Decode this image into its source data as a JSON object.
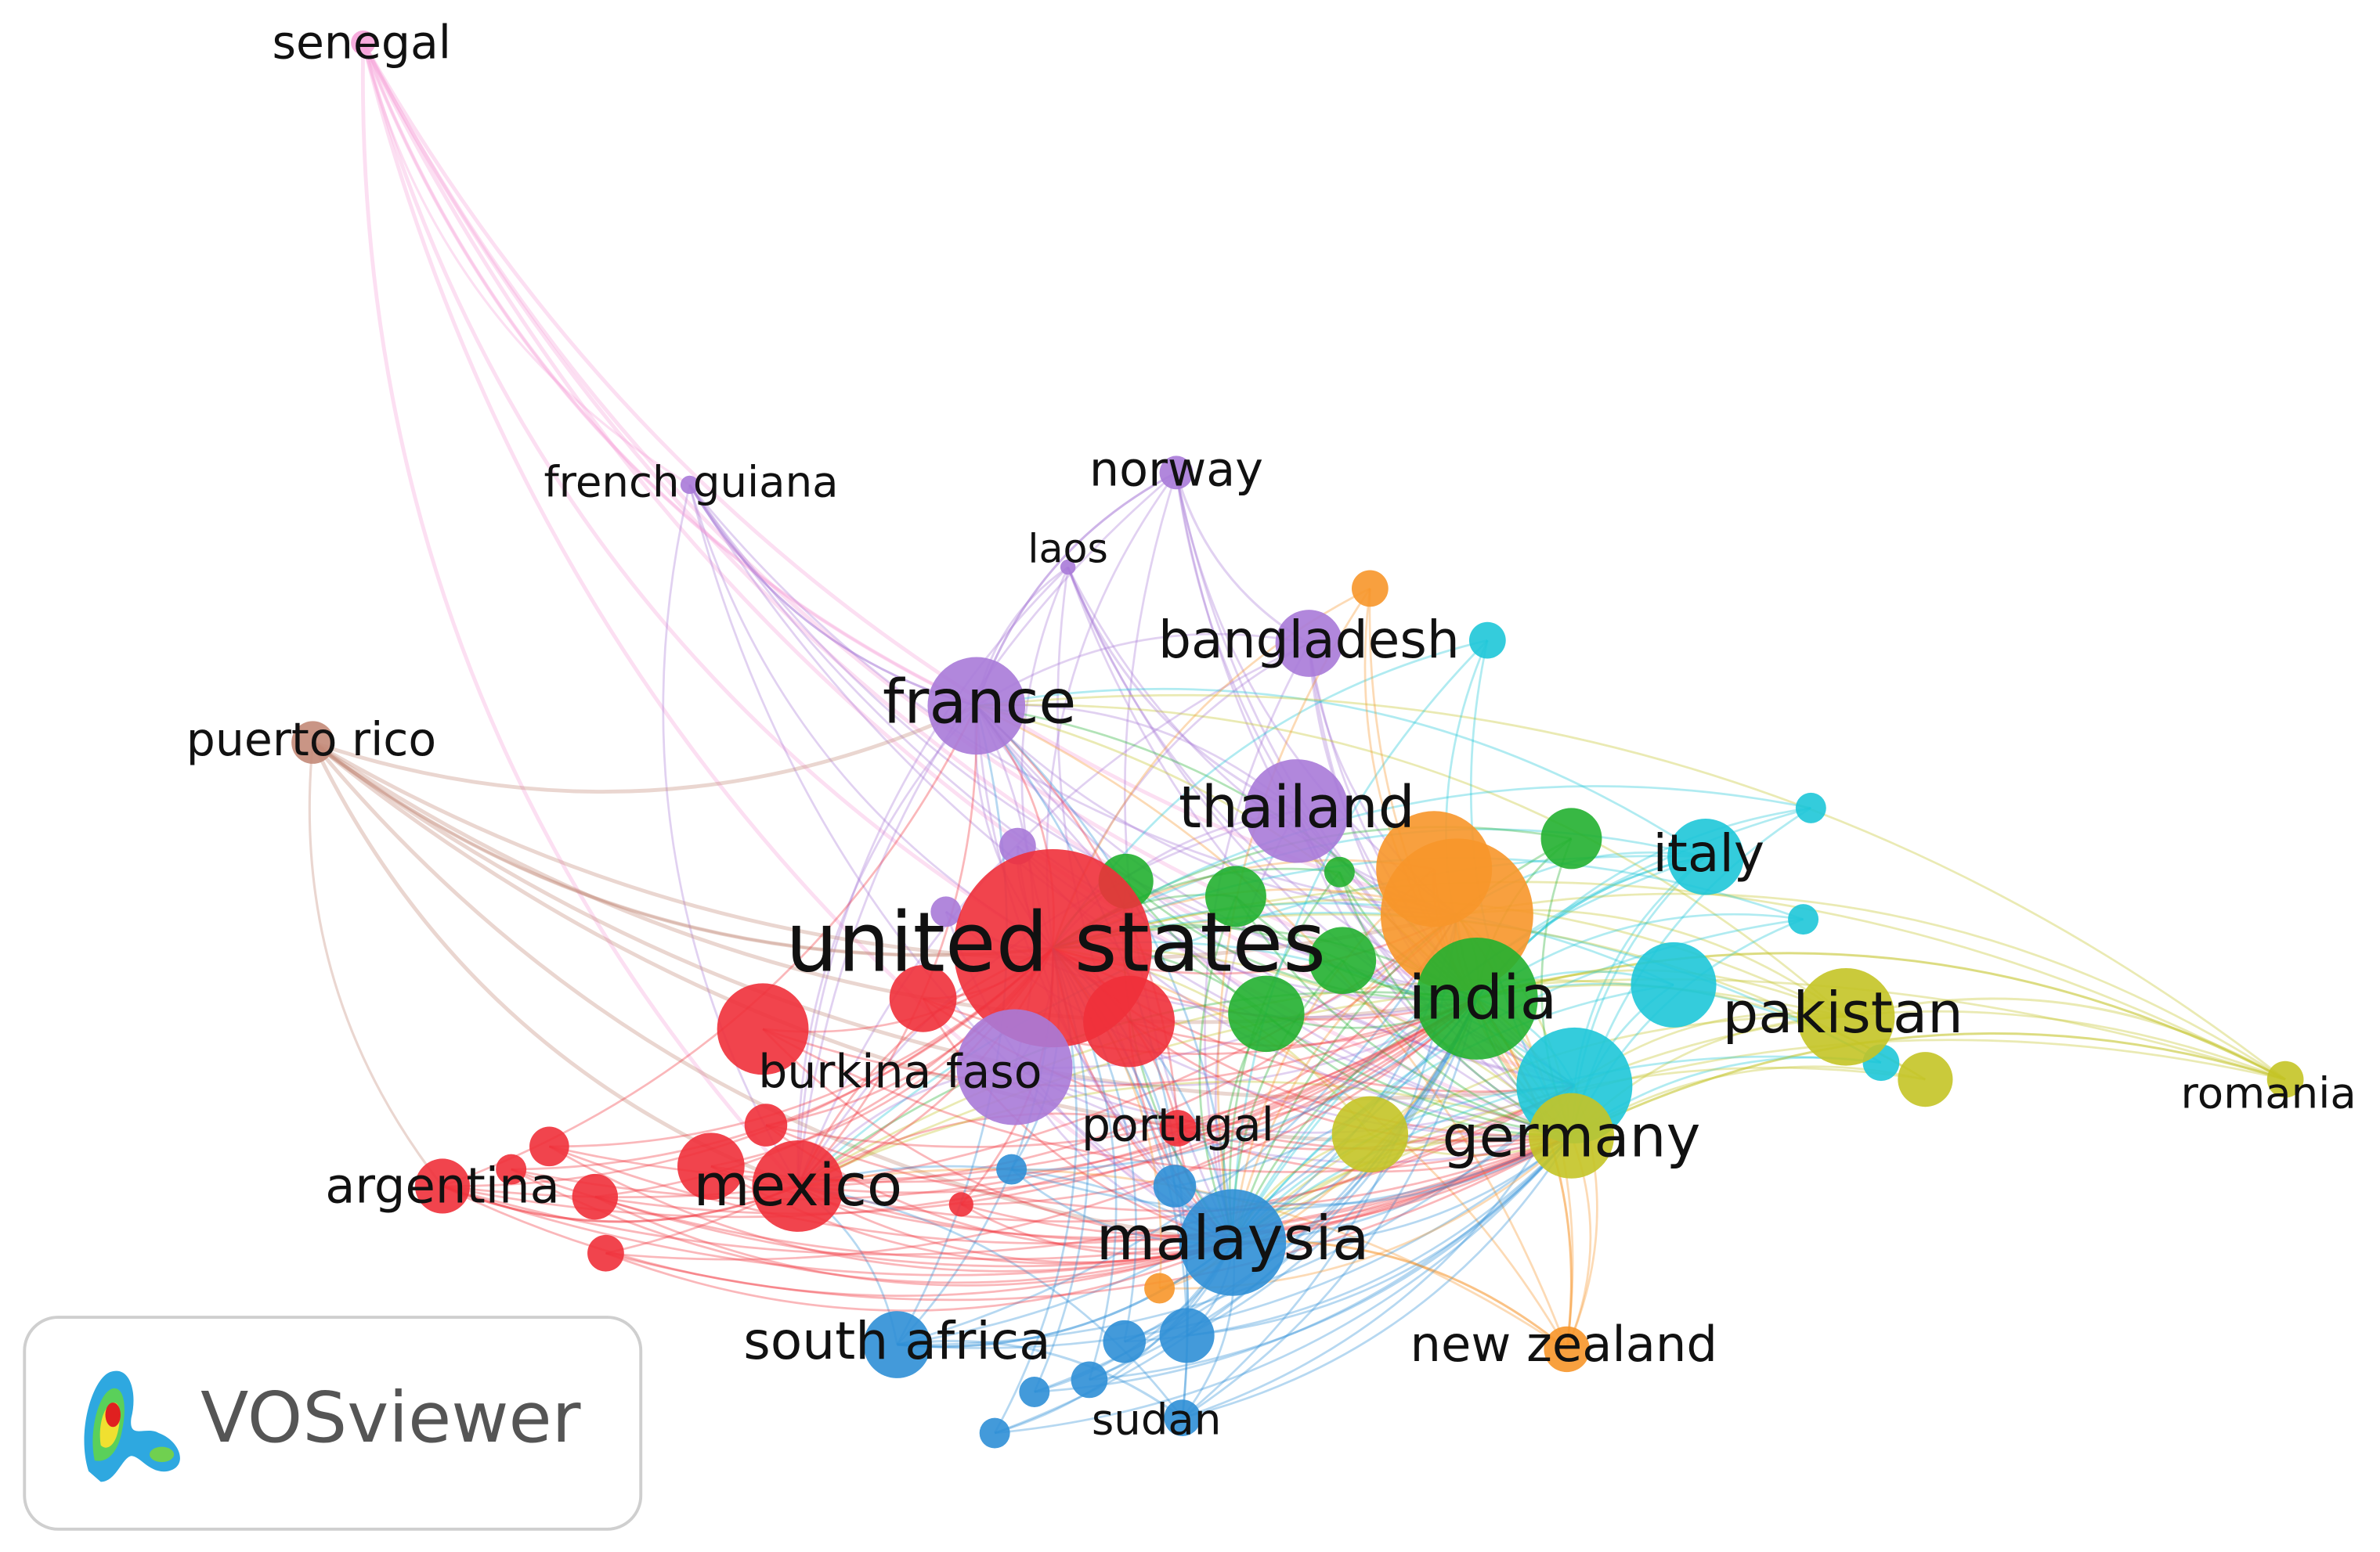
{
  "nodes": [
    {
      "label": "senegal"
    },
    {
      "label": "french guiana"
    },
    {
      "label": "norway"
    },
    {
      "label": "laos"
    },
    {
      "label": "bangladesh"
    },
    {
      "label": "france"
    },
    {
      "label": "puerto rico"
    },
    {
      "label": "thailand"
    },
    {
      "label": "italy"
    },
    {
      "label": "united states"
    },
    {
      "label": "india"
    },
    {
      "label": "pakistan"
    },
    {
      "label": "burkina faso"
    },
    {
      "label": "romania"
    },
    {
      "label": "portugal"
    },
    {
      "label": "germany"
    },
    {
      "label": "argentina"
    },
    {
      "label": "mexico"
    },
    {
      "label": "malaysia"
    },
    {
      "label": "new zealand"
    },
    {
      "label": "south africa"
    },
    {
      "label": "sudan"
    }
  ],
  "logo": {
    "text": "VOSviewer"
  }
}
